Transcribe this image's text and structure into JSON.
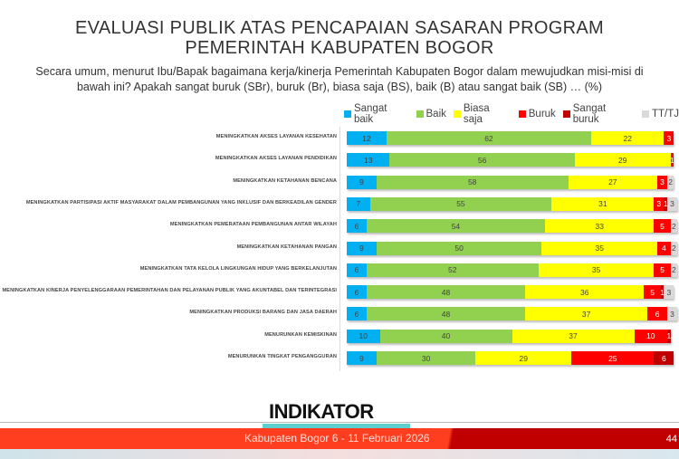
{
  "title_lines": [
    "EVALUASI PUBLIK ATAS PENCAPAIAN SASARAN PROGRAM",
    "PEMERINTAH KABUPATEN BOGOR"
  ],
  "question": "Secara umum, menurut Ibu/Bapak bagaimana kerja/kinerja Pemerintah Kabupaten Bogor dalam mewujudkan misi-misi di bawah ini? Apakah sangat buruk (SBr), buruk (Br), biasa saja (BS), baik (B) atau sangat baik (SB) … (%)",
  "footer": {
    "logo": "INDIKATOR",
    "text": "Kabupaten Bogor 6 - 11 Februari 2026",
    "page": "44"
  },
  "chart_data": {
    "type": "bar",
    "orientation": "horizontal",
    "stacked": true,
    "legend_position": "top",
    "grid": false,
    "categories": [
      "MENINGKATKAN AKSES LAYANAN KESEHATAN",
      "MENINGKATKAN AKSES LAYANAN PENDIDIKAN",
      "MENINGKATKAN KETAHANAN BENCANA",
      "MENINGKATKAN PARTISIPASI AKTIF MASYARAKAT DALAM PEMBANGUNAN YANG INKLUSIF DAN BERKEADILAN GENDER",
      "MENINGKATKAN PEMERATAAN PEMBANGUNAN ANTAR WILAYAH",
      "MENINGKATKAN KETAHANAN PANGAN",
      "MENINGKATKAN TATA KELOLA LINGKUNGAN HIDUP YANG BERKELANJUTAN",
      "MENINGKATKAN KINERJA PENYELENGGARAAN PEMERINTAHAN DAN PELAYANAN PUBLIK YANG AKUNTABEL DAN TERINTEGRASI",
      "MENINGKATKAN PRODUKSI BARANG DAN JASA DAERAH",
      "MENURUNKAN KEMISKINAN",
      "MENURUNKAN TINGKAT PENGANGGURAN"
    ],
    "series": [
      {
        "name": "Sangat baik",
        "color": "#00b0f0",
        "values": [
          12,
          13,
          9,
          7,
          6,
          9,
          6,
          6,
          6,
          10,
          9
        ]
      },
      {
        "name": "Baik",
        "color": "#92d050",
        "values": [
          62,
          56,
          58,
          55,
          54,
          50,
          52,
          48,
          48,
          40,
          30
        ]
      },
      {
        "name": "Biasa saja",
        "color": "#ffff00",
        "values": [
          22,
          29,
          27,
          31,
          33,
          35,
          35,
          36,
          37,
          37,
          29
        ]
      },
      {
        "name": "Buruk",
        "color": "#ff0000",
        "values": [
          3,
          1,
          3,
          3,
          5,
          4,
          5,
          5,
          6,
          10,
          25
        ]
      },
      {
        "name": "Sangat buruk",
        "color": "#c00000",
        "values": [
          0,
          0,
          0,
          1,
          0,
          0,
          0,
          1,
          0,
          1,
          6
        ]
      },
      {
        "name": "TT/TJ",
        "color": "#d9d9d9",
        "values": [
          0,
          0,
          2,
          3,
          2,
          2,
          2,
          3,
          3,
          0,
          0
        ]
      }
    ],
    "xlim": [
      0,
      100
    ]
  }
}
